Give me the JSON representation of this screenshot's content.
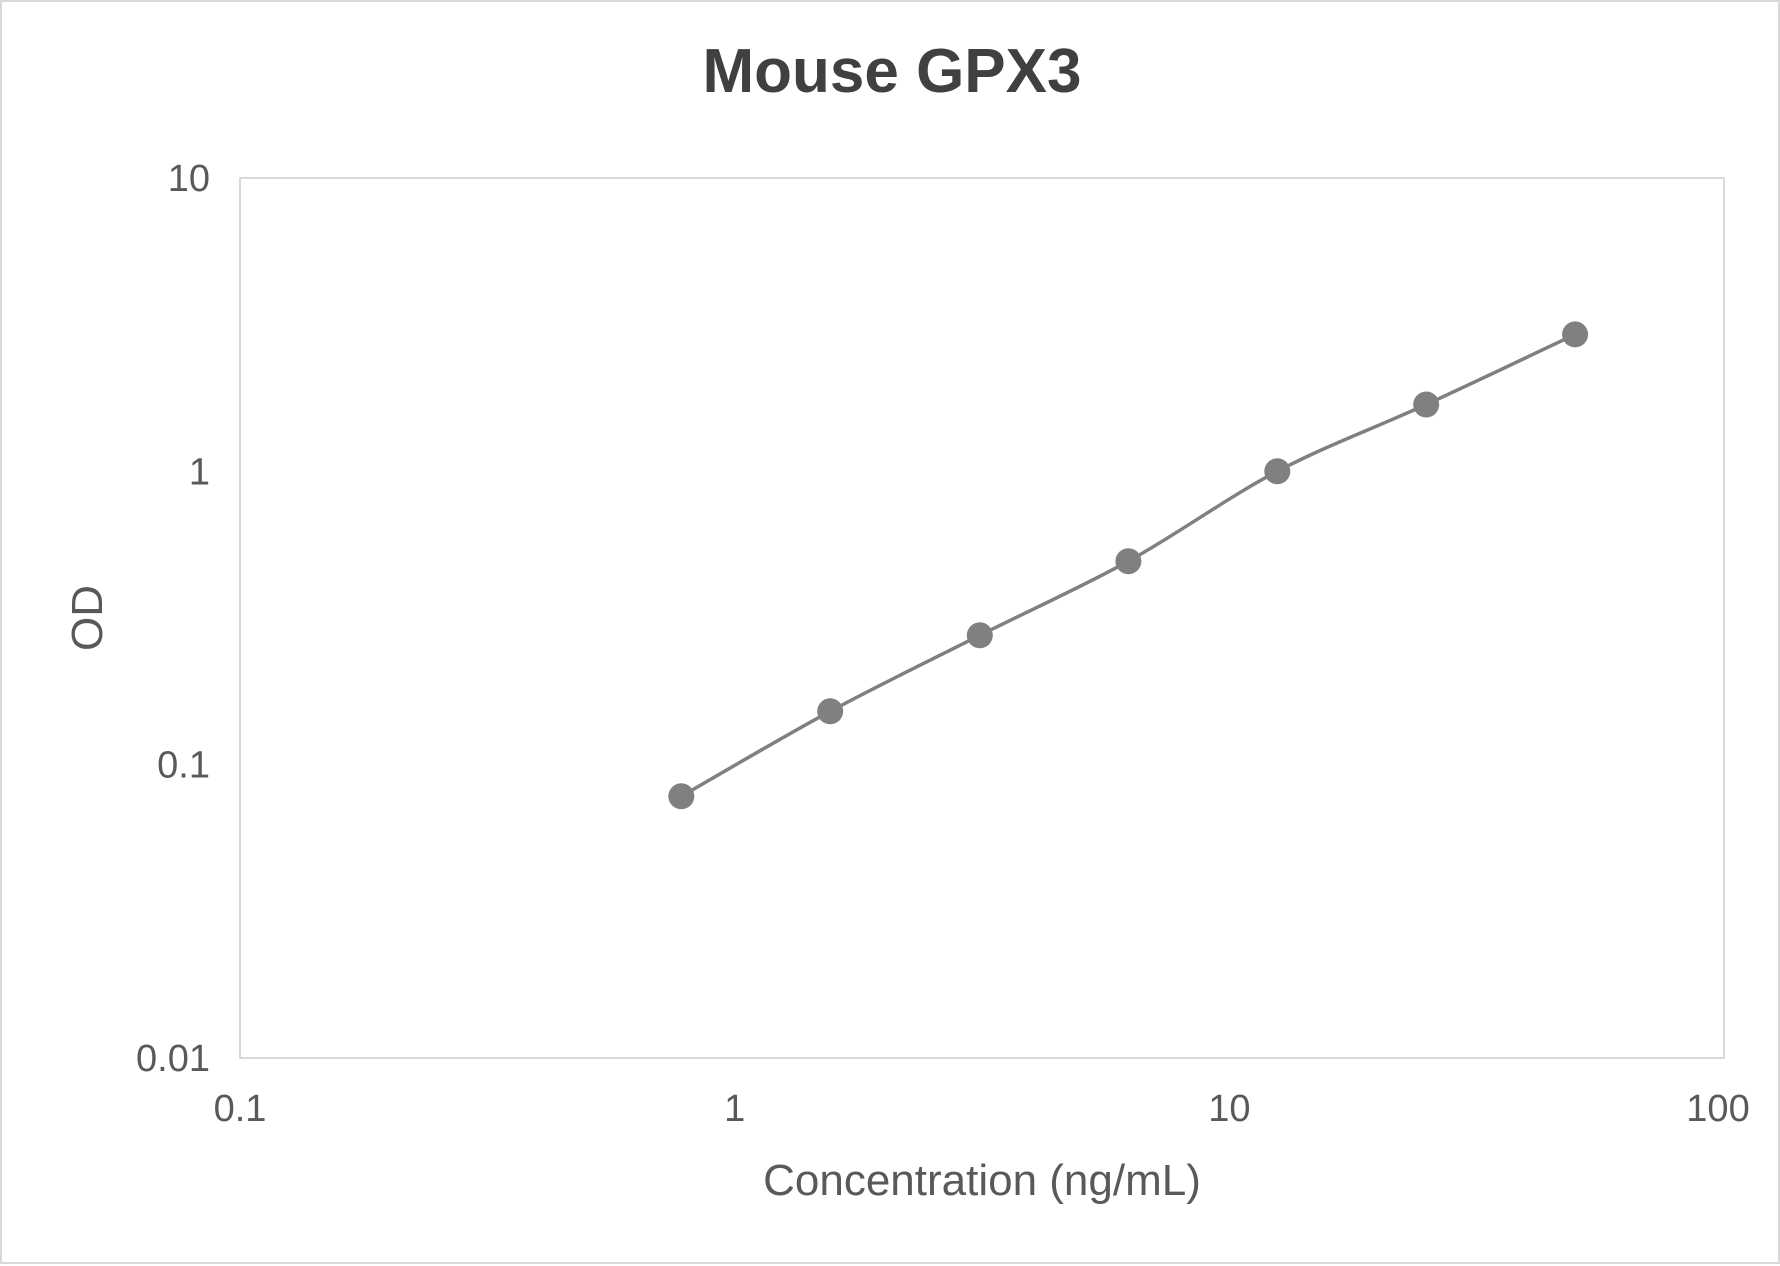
{
  "chart_data": {
    "type": "line",
    "title": "Mouse GPX3",
    "xlabel": "Concentration (ng/mL)",
    "ylabel": "OD",
    "xscale": "log",
    "yscale": "log",
    "xlim": [
      0.1,
      100
    ],
    "ylim": [
      0.01,
      10
    ],
    "xticks": [
      "0.1",
      "1",
      "10",
      "100"
    ],
    "yticks": [
      "0.01",
      "0.1",
      "1",
      "10"
    ],
    "grid": false,
    "legend": "none",
    "marker": "circle",
    "smooth": true,
    "colors": {
      "series": "#808080",
      "plot_border": "#d9d9d9"
    },
    "series": [
      {
        "x": [
          0.78,
          1.56,
          3.13,
          6.25,
          12.5,
          25,
          50
        ],
        "y": [
          0.078,
          0.152,
          0.276,
          0.494,
          1.0,
          1.69,
          2.93
        ]
      }
    ]
  }
}
